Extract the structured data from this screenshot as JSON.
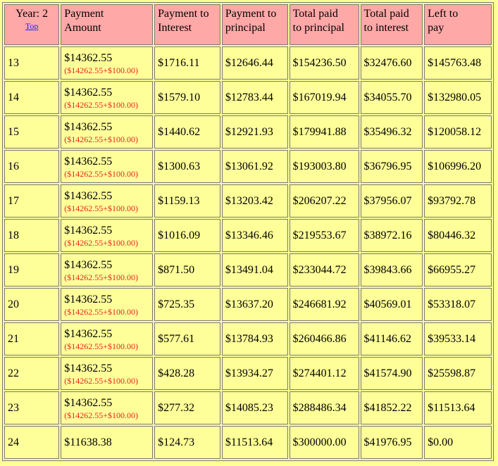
{
  "headers": {
    "year": "Year: 2",
    "top_link": "Top",
    "payment_amount": [
      "Payment",
      "Amount"
    ],
    "payment_to_interest": [
      "Payment to",
      "Interest"
    ],
    "payment_to_principal": [
      "Payment to",
      "principal"
    ],
    "total_paid_principal": [
      "Total paid",
      "to principal"
    ],
    "total_paid_interest": [
      "Total paid",
      "to interest"
    ],
    "left_to_pay": [
      "Left to",
      "pay"
    ]
  },
  "rows": [
    {
      "n": "13",
      "payment": "$14362.55",
      "breakdown": "($14262.55+$100.00)",
      "interest": "$1716.11",
      "principal": "$12646.44",
      "total_principal": "$154236.50",
      "total_interest": "$32476.60",
      "left": "$145763.48"
    },
    {
      "n": "14",
      "payment": "$14362.55",
      "breakdown": "($14262.55+$100.00)",
      "interest": "$1579.10",
      "principal": "$12783.44",
      "total_principal": "$167019.94",
      "total_interest": "$34055.70",
      "left": "$132980.05"
    },
    {
      "n": "15",
      "payment": "$14362.55",
      "breakdown": "($14262.55+$100.00)",
      "interest": "$1440.62",
      "principal": "$12921.93",
      "total_principal": "$179941.88",
      "total_interest": "$35496.32",
      "left": "$120058.12"
    },
    {
      "n": "16",
      "payment": "$14362.55",
      "breakdown": "($14262.55+$100.00)",
      "interest": "$1300.63",
      "principal": "$13061.92",
      "total_principal": "$193003.80",
      "total_interest": "$36796.95",
      "left": "$106996.20"
    },
    {
      "n": "17",
      "payment": "$14362.55",
      "breakdown": "($14262.55+$100.00)",
      "interest": "$1159.13",
      "principal": "$13203.42",
      "total_principal": "$206207.22",
      "total_interest": "$37956.07",
      "left": "$93792.78"
    },
    {
      "n": "18",
      "payment": "$14362.55",
      "breakdown": "($14262.55+$100.00)",
      "interest": "$1016.09",
      "principal": "$13346.46",
      "total_principal": "$219553.67",
      "total_interest": "$38972.16",
      "left": "$80446.32"
    },
    {
      "n": "19",
      "payment": "$14362.55",
      "breakdown": "($14262.55+$100.00)",
      "interest": "$871.50",
      "principal": "$13491.04",
      "total_principal": "$233044.72",
      "total_interest": "$39843.66",
      "left": "$66955.27"
    },
    {
      "n": "20",
      "payment": "$14362.55",
      "breakdown": "($14262.55+$100.00)",
      "interest": "$725.35",
      "principal": "$13637.20",
      "total_principal": "$246681.92",
      "total_interest": "$40569.01",
      "left": "$53318.07"
    },
    {
      "n": "21",
      "payment": "$14362.55",
      "breakdown": "($14262.55+$100.00)",
      "interest": "$577.61",
      "principal": "$13784.93",
      "total_principal": "$260466.86",
      "total_interest": "$41146.62",
      "left": "$39533.14"
    },
    {
      "n": "22",
      "payment": "$14362.55",
      "breakdown": "($14262.55+$100.00)",
      "interest": "$428.28",
      "principal": "$13934.27",
      "total_principal": "$274401.12",
      "total_interest": "$41574.90",
      "left": "$25598.87"
    },
    {
      "n": "23",
      "payment": "$14362.55",
      "breakdown": "($14262.55+$100.00)",
      "interest": "$277.32",
      "principal": "$14085.23",
      "total_principal": "$288486.34",
      "total_interest": "$41852.22",
      "left": "$11513.64"
    },
    {
      "n": "24",
      "payment": "$11638.38",
      "breakdown": "",
      "interest": "$124.73",
      "principal": "$11513.64",
      "total_principal": "$300000.00",
      "total_interest": "$41976.95",
      "left": "$0.00"
    }
  ],
  "colors": {
    "header_bg": "#ffa8a8",
    "cell_bg": "#ffff99",
    "breakdown_text": "#ee2222",
    "link": "#2222ee"
  }
}
